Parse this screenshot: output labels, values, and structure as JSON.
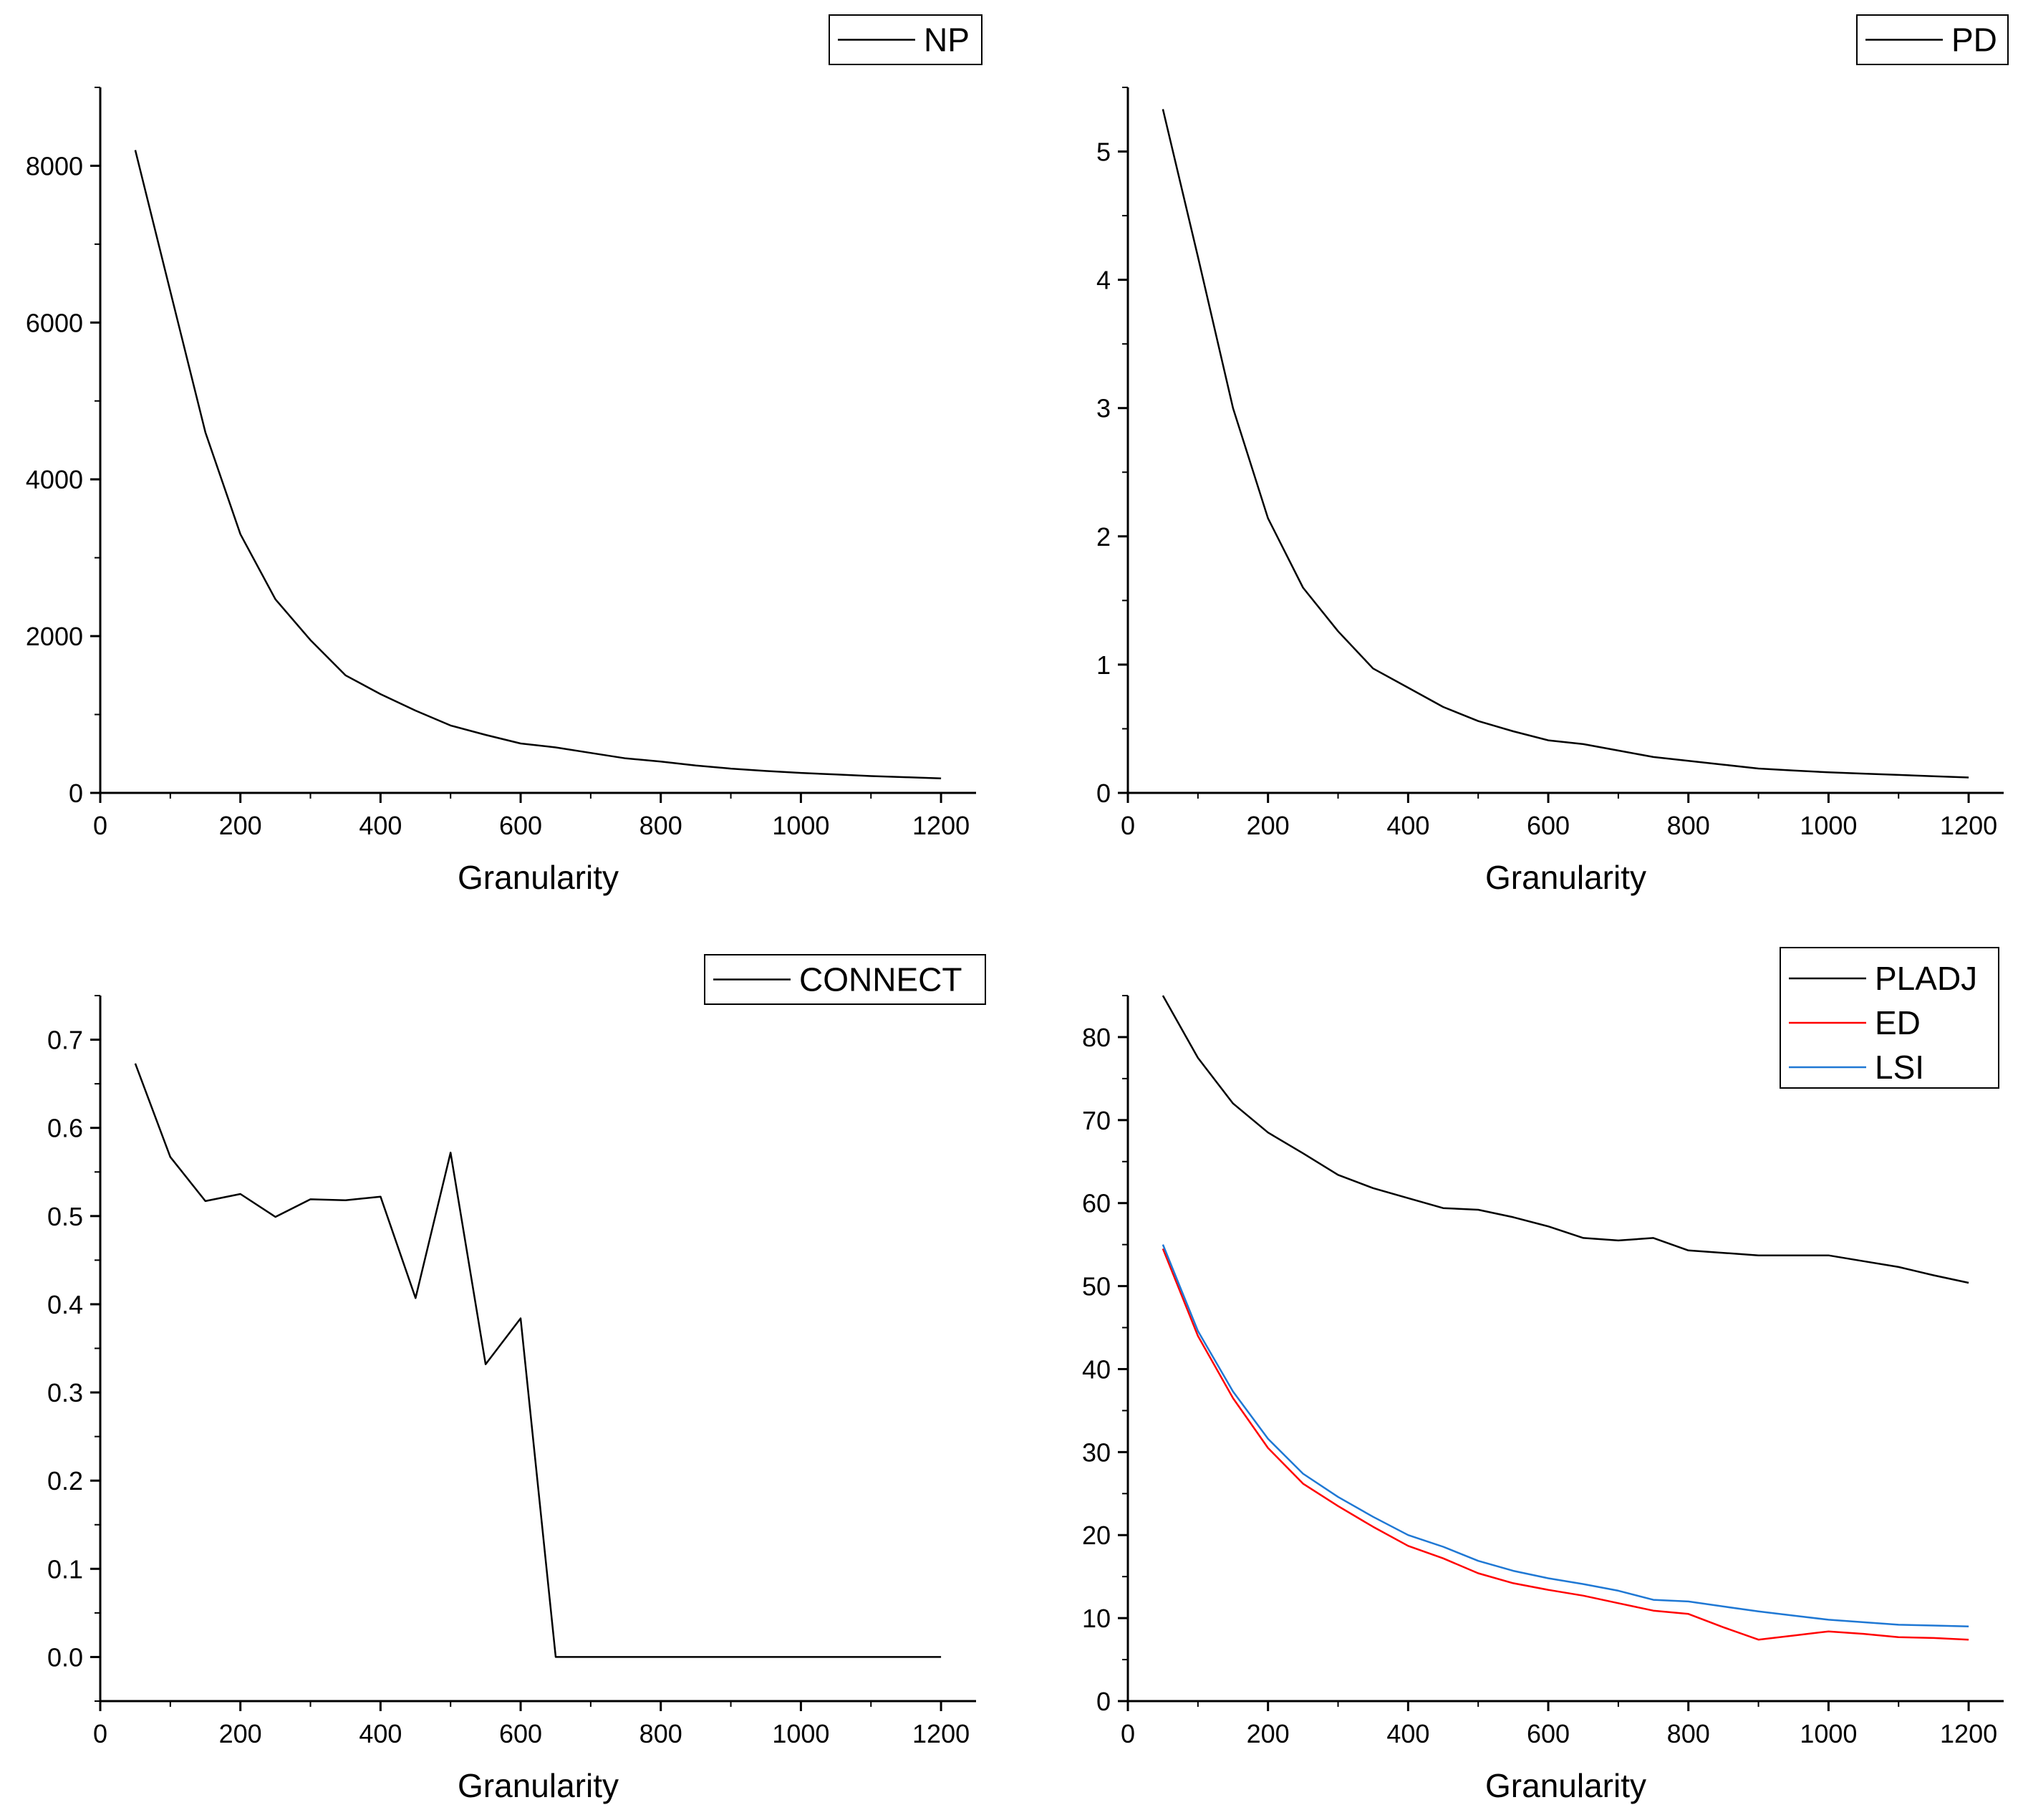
{
  "chart_data": [
    {
      "type": "line",
      "xlabel": "Granularity",
      "ylabel": "",
      "xlim": [
        0,
        1250
      ],
      "ylim": [
        0,
        9000
      ],
      "xticks": [
        0,
        200,
        400,
        600,
        800,
        1000,
        1200
      ],
      "yticks": [
        0,
        2000,
        4000,
        6000,
        8000
      ],
      "legend_position": "top-right",
      "x": [
        50,
        100,
        150,
        200,
        250,
        300,
        350,
        400,
        450,
        500,
        550,
        600,
        650,
        700,
        750,
        800,
        850,
        900,
        950,
        1000,
        1050,
        1100,
        1150,
        1200
      ],
      "series": [
        {
          "name": "NP",
          "color": "#000000",
          "values": [
            8200,
            6400,
            4600,
            3300,
            2470,
            1950,
            1500,
            1260,
            1050,
            860,
            740,
            630,
            580,
            510,
            440,
            400,
            350,
            310,
            280,
            255,
            235,
            215,
            200,
            185
          ]
        }
      ]
    },
    {
      "type": "line",
      "xlabel": "Granularity",
      "ylabel": "",
      "xlim": [
        0,
        1250
      ],
      "ylim": [
        0,
        5.5
      ],
      "xticks": [
        0,
        200,
        400,
        600,
        800,
        1000,
        1200
      ],
      "yticks": [
        0,
        1,
        2,
        3,
        4,
        5
      ],
      "legend_position": "top-right",
      "x": [
        50,
        100,
        150,
        200,
        250,
        300,
        350,
        400,
        450,
        500,
        550,
        600,
        650,
        700,
        750,
        800,
        850,
        900,
        950,
        1000,
        1050,
        1100,
        1150,
        1200
      ],
      "series": [
        {
          "name": "PD",
          "color": "#000000",
          "values": [
            5.33,
            4.18,
            3.0,
            2.14,
            1.6,
            1.26,
            0.97,
            0.82,
            0.67,
            0.56,
            0.48,
            0.41,
            0.38,
            0.33,
            0.28,
            0.25,
            0.22,
            0.19,
            0.175,
            0.16,
            0.15,
            0.14,
            0.13,
            0.12
          ]
        }
      ]
    },
    {
      "type": "line",
      "xlabel": "Granularity",
      "ylabel": "",
      "xlim": [
        0,
        1250
      ],
      "ylim": [
        -0.05,
        0.75
      ],
      "xticks": [
        0,
        200,
        400,
        600,
        800,
        1000,
        1200
      ],
      "yticks": [
        0.0,
        0.1,
        0.2,
        0.3,
        0.4,
        0.5,
        0.6,
        0.7
      ],
      "ytick_labels": [
        "0.0",
        "0.1",
        "0.2",
        "0.3",
        "0.4",
        "0.5",
        "0.6",
        "0.7"
      ],
      "legend_position": "top-right",
      "x": [
        50,
        100,
        150,
        200,
        250,
        300,
        350,
        400,
        450,
        500,
        550,
        600,
        650,
        700,
        750,
        800,
        850,
        900,
        950,
        1000,
        1050,
        1100,
        1150,
        1200
      ],
      "series": [
        {
          "name": "CONNECT",
          "color": "#000000",
          "values": [
            0.673,
            0.567,
            0.517,
            0.525,
            0.499,
            0.519,
            0.518,
            0.522,
            0.407,
            0.572,
            0.332,
            0.384,
            0.0,
            0.0,
            0.0,
            0.0,
            0.0,
            0.0,
            0.0,
            0.0,
            0.0,
            0.0,
            0.0,
            0.0
          ]
        }
      ]
    },
    {
      "type": "line",
      "xlabel": "Granularity",
      "ylabel": "",
      "xlim": [
        0,
        1250
      ],
      "ylim": [
        0,
        85
      ],
      "xticks": [
        0,
        200,
        400,
        600,
        800,
        1000,
        1200
      ],
      "yticks": [
        0,
        10,
        20,
        30,
        40,
        50,
        60,
        70,
        80
      ],
      "legend_position": "top-right",
      "x": [
        50,
        100,
        150,
        200,
        250,
        300,
        350,
        400,
        450,
        500,
        550,
        600,
        650,
        700,
        750,
        800,
        850,
        900,
        950,
        1000,
        1050,
        1100,
        1150,
        1200
      ],
      "series": [
        {
          "name": "PLADJ",
          "color": "#000000",
          "values": [
            85.0,
            77.5,
            72.0,
            68.5,
            66.0,
            63.4,
            61.8,
            60.6,
            59.4,
            59.2,
            58.3,
            57.2,
            55.8,
            55.5,
            55.8,
            54.3,
            54.0,
            53.7,
            53.7,
            53.7,
            53.0,
            52.3,
            51.3,
            50.4
          ]
        },
        {
          "name": "ED",
          "color": "#ff0000",
          "values": [
            54.5,
            44.0,
            36.5,
            30.5,
            26.2,
            23.5,
            21.0,
            18.7,
            17.2,
            15.4,
            14.2,
            13.4,
            12.7,
            11.8,
            10.9,
            10.5,
            8.9,
            7.4,
            7.9,
            8.4,
            8.1,
            7.7,
            7.6,
            7.4
          ]
        },
        {
          "name": "LSI",
          "color": "#1f78d4",
          "values": [
            55.0,
            44.6,
            37.3,
            31.6,
            27.4,
            24.6,
            22.2,
            20.0,
            18.6,
            16.9,
            15.7,
            14.8,
            14.1,
            13.3,
            12.2,
            12.0,
            11.4,
            10.8,
            10.3,
            9.8,
            9.5,
            9.2,
            9.1,
            9.0
          ]
        }
      ]
    }
  ]
}
